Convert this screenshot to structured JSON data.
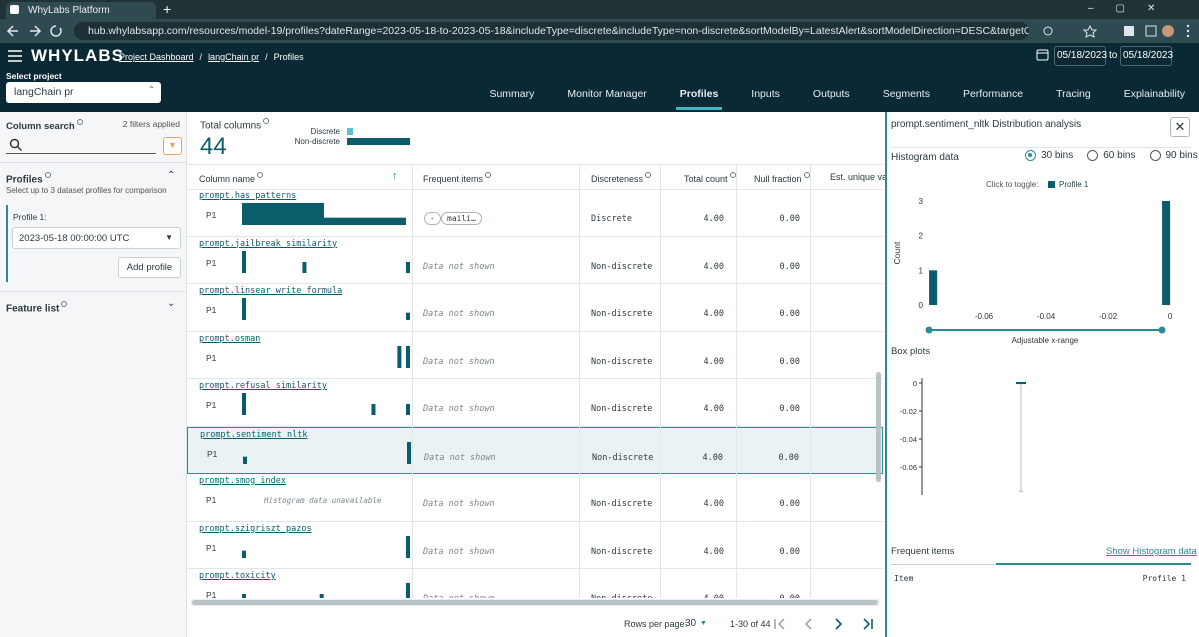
{
  "browser": {
    "tab_title": "WhyLabs Platform",
    "url": "hub.whylabsapp.com/resources/model-19/profiles?dateRange=2023-05-18-to-2023-05-18&includeType=discrete&includeType=non-discrete&sortModelBy=LatestAlert&sortModelDirection=DESC&targetOrgId=org-b3VEBV&profile=16843680000..."
  },
  "header": {
    "logo": "WHYLABS",
    "breadcrumbs": [
      "Project Dashboard",
      "langChain pr",
      "Profiles"
    ],
    "date_from": "05/18/2023",
    "date_sep": "to",
    "date_to": "05/18/2023",
    "select_project_label": "Select project",
    "project": "langChain pr",
    "tabs": [
      "Summary",
      "Monitor Manager",
      "Profiles",
      "Inputs",
      "Outputs",
      "Segments",
      "Performance",
      "Tracing",
      "Explainability"
    ],
    "active_tab": 2
  },
  "sidebar": {
    "column_search": "Column search",
    "filters_applied": "2 filters applied",
    "profiles_title": "Profiles",
    "profiles_hint": "Select up to 3 dataset profiles for comparison",
    "profile_label": "Profile 1:",
    "profile_value": "2023-05-18 00:00:00 UTC",
    "add_profile": "Add profile",
    "feature_list": "Feature list"
  },
  "summary": {
    "title": "Total columns",
    "total": 44,
    "types": [
      {
        "name": "Discrete",
        "value": 4,
        "color": "#5bc0d0"
      },
      {
        "name": "Non-discrete",
        "value": 40,
        "color": "#0b5d6c"
      }
    ]
  },
  "table": {
    "columns": [
      "Column name",
      "Frequent items",
      "Discreteness",
      "Total count",
      "Null fraction",
      "Est. unique va"
    ],
    "rows": [
      {
        "name": "prompt.has_patterns",
        "profile": "P1",
        "histogram": [
          3,
          1
        ],
        "frequent_items": [
          "-",
          "maili…"
        ],
        "discreteness": "Discrete",
        "total_count": "4.00",
        "null_fraction": "0.00"
      },
      {
        "name": "prompt.jailbreak_similarity",
        "profile": "P1",
        "histogram": [
          2,
          0,
          0,
          0,
          0,
          0,
          0,
          1,
          0,
          0,
          0,
          0,
          0,
          0,
          0,
          0,
          0,
          0,
          0,
          1
        ],
        "frequent_note": "Data not shown",
        "discreteness": "Non-discrete",
        "total_count": "4.00",
        "null_fraction": "0.00"
      },
      {
        "name": "prompt.linsear_write_formula",
        "profile": "P1",
        "histogram": [
          3,
          0,
          0,
          0,
          0,
          0,
          0,
          0,
          0,
          0,
          0,
          0,
          0,
          0,
          0,
          0,
          0,
          0,
          0,
          1
        ],
        "frequent_note": "Data not shown",
        "discreteness": "Non-discrete",
        "total_count": "4.00",
        "null_fraction": "0.00"
      },
      {
        "name": "prompt.osman",
        "profile": "P1",
        "histogram": [
          0,
          0,
          0,
          0,
          0,
          0,
          0,
          0,
          0,
          0,
          0,
          0,
          0,
          0,
          0,
          0,
          0,
          0,
          2,
          2
        ],
        "frequent_note": "Data not shown",
        "discreteness": "Non-discrete",
        "total_count": "4.00",
        "null_fraction": "0.00"
      },
      {
        "name": "prompt.refusal_similarity",
        "profile": "P1",
        "histogram": [
          2,
          0,
          0,
          0,
          0,
          0,
          0,
          0,
          0,
          0,
          0,
          0,
          0,
          0,
          0,
          1,
          0,
          0,
          0,
          1
        ],
        "frequent_note": "Data not shown",
        "discreteness": "Non-discrete",
        "total_count": "4.00",
        "null_fraction": "0.00"
      },
      {
        "name": "prompt.sentiment_nltk",
        "profile": "P1",
        "histogram": [
          1,
          0,
          0,
          0,
          0,
          0,
          0,
          0,
          0,
          0,
          0,
          0,
          0,
          0,
          0,
          0,
          0,
          0,
          0,
          3
        ],
        "frequent_note": "Data not shown",
        "discreteness": "Non-discrete",
        "total_count": "4.00",
        "null_fraction": "0.00"
      },
      {
        "name": "prompt.smog_index",
        "profile": "P1",
        "histogram_note": "Histogram data unavailable",
        "frequent_note": "Data not shown",
        "discreteness": "Non-discrete",
        "total_count": "4.00",
        "null_fraction": "0.00"
      },
      {
        "name": "prompt.szigriszt_pazos",
        "profile": "P1",
        "histogram": [
          1,
          0,
          0,
          0,
          0,
          0,
          0,
          0,
          0,
          0,
          0,
          0,
          0,
          0,
          0,
          0,
          0,
          0,
          0,
          3
        ],
        "frequent_note": "Data not shown",
        "discreteness": "Non-discrete",
        "total_count": "4.00",
        "null_fraction": "0.00"
      },
      {
        "name": "prompt.toxicity",
        "profile": "P1",
        "histogram": [
          1,
          0,
          0,
          0,
          0,
          0,
          0,
          0,
          0,
          1,
          0,
          0,
          0,
          0,
          0,
          0,
          0,
          0,
          0,
          2
        ],
        "frequent_note": "Data not shown",
        "discreteness": "Non-discrete",
        "total_count": "4.00",
        "null_fraction": "0.00"
      }
    ],
    "selected_row": 5
  },
  "pagination": {
    "rows_per_page_label": "Rows per page:",
    "rows_per_page": 30,
    "range": "1-30 of 44"
  },
  "panel": {
    "title": "prompt.sentiment_nltk Distribution analysis",
    "histogram_title": "Histogram data",
    "bin_options": [
      "30 bins",
      "60 bins",
      "90 bins"
    ],
    "selected_bins": 0,
    "toggle_label": "Click to toggle:",
    "legend": "Profile 1",
    "color": "#0b5d6c",
    "histogram": {
      "type": "histogram",
      "ylabel": "Count",
      "xlabel": "Adjustable x-range",
      "bins": [
        -0.0777,
        -0.0751,
        -0.0026,
        0
      ],
      "counts": [
        1,
        0,
        3
      ],
      "xlim": [
        -0.0787,
        0.0006
      ],
      "ylim": [
        0,
        3
      ],
      "xticks": [
        -0.06,
        -0.04,
        -0.02,
        0
      ],
      "yticks": [
        0,
        1,
        2,
        3
      ]
    },
    "boxplot": {
      "type": "box",
      "title": "Box plots",
      "min": -0.0777,
      "q1": 0,
      "median": 0,
      "q3": 0,
      "max": 0,
      "ylim": [
        -0.08,
        0.0036
      ],
      "yticks": [
        0,
        -0.02,
        -0.04,
        -0.06
      ]
    },
    "frequent_title": "Frequent items",
    "show_histogram": "Show Histogram data",
    "columns": [
      "Item",
      "Profile 1"
    ]
  }
}
